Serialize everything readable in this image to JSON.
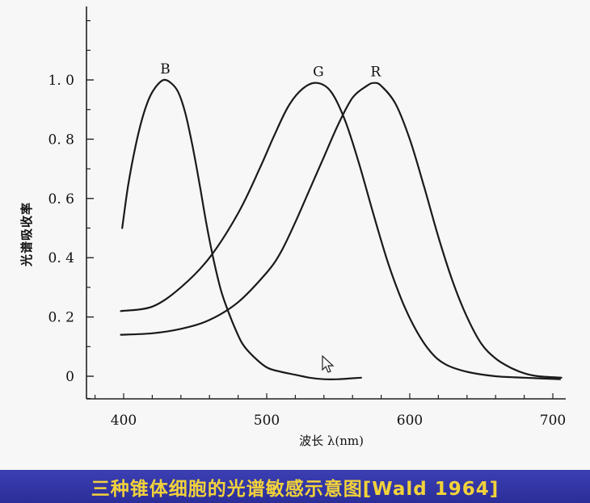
{
  "caption": "三种锥体细胞的光谱敏感示意图[Wald 1964]",
  "chart_data": {
    "type": "line",
    "xlabel": "波长 λ(nm)",
    "ylabel": "光谱吸收率",
    "xlim": [
      370,
      720
    ],
    "ylim": [
      -0.08,
      1.3
    ],
    "x_ticks": [
      400,
      500,
      600,
      700
    ],
    "y_ticks": [
      0,
      0.2,
      0.4,
      0.6,
      0.8,
      1.0
    ],
    "y_tick_labels": [
      "0",
      "0. 2",
      "0. 4",
      "0. 6",
      "0. 8",
      "1. 0"
    ],
    "grid": false,
    "colors": {
      "curve": "#1a1a1a",
      "caption_bg": "#2f33a6",
      "caption_text": "#f2d23a"
    },
    "series": [
      {
        "name": "B",
        "x": [
          399,
          403,
          408,
          413,
          418,
          423,
          428,
          433,
          438,
          443,
          448,
          453,
          458,
          463,
          468,
          473,
          478,
          483,
          490,
          500,
          510,
          520,
          530,
          540,
          550,
          566
        ],
        "y": [
          0.5,
          0.64,
          0.77,
          0.87,
          0.94,
          0.98,
          1.0,
          0.99,
          0.96,
          0.89,
          0.78,
          0.65,
          0.51,
          0.39,
          0.29,
          0.22,
          0.16,
          0.11,
          0.07,
          0.03,
          0.015,
          0.005,
          -0.005,
          -0.01,
          -0.01,
          -0.005
        ]
      },
      {
        "name": "G",
        "x": [
          398,
          420,
          440,
          460,
          480,
          495,
          505,
          515,
          525,
          535,
          545,
          555,
          565,
          575,
          585,
          595,
          605,
          615,
          625,
          640,
          660,
          680,
          705
        ],
        "y": [
          0.22,
          0.235,
          0.3,
          0.4,
          0.55,
          0.7,
          0.81,
          0.91,
          0.97,
          0.99,
          0.96,
          0.86,
          0.71,
          0.54,
          0.38,
          0.25,
          0.15,
          0.08,
          0.04,
          0.015,
          0.0,
          -0.005,
          -0.01
        ]
      },
      {
        "name": "R",
        "x": [
          398,
          420,
          440,
          460,
          480,
          500,
          510,
          520,
          530,
          540,
          550,
          560,
          570,
          575,
          580,
          590,
          600,
          610,
          620,
          630,
          640,
          650,
          660,
          670,
          680,
          690,
          706
        ],
        "y": [
          0.14,
          0.145,
          0.16,
          0.19,
          0.25,
          0.35,
          0.42,
          0.52,
          0.63,
          0.74,
          0.85,
          0.94,
          0.98,
          0.99,
          0.98,
          0.92,
          0.8,
          0.64,
          0.47,
          0.32,
          0.2,
          0.11,
          0.06,
          0.03,
          0.01,
          0.0,
          -0.005
        ]
      }
    ]
  }
}
